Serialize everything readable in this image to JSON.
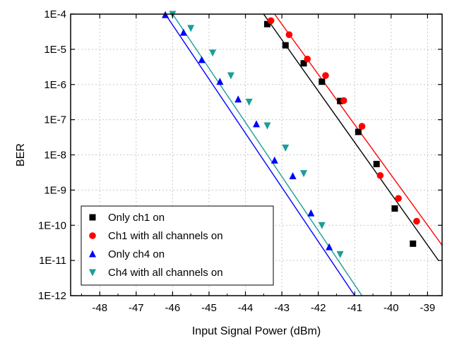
{
  "chart_data": {
    "type": "scatter",
    "title": "",
    "xlabel": "Input Signal Power (dBm)",
    "ylabel": "BER",
    "xlim": [
      -48.8,
      -38.6
    ],
    "ylim_exponent": [
      -12,
      -4
    ],
    "y_scale": "log",
    "grid": "dotted",
    "legend_position": "bottom-left",
    "x_ticks": [
      -48,
      -47,
      -46,
      -45,
      -44,
      -43,
      -42,
      -41,
      -40,
      -39
    ],
    "x_tick_labels": [
      "-48",
      "-47",
      "-46",
      "-45",
      "-44",
      "-43",
      "-42",
      "-41",
      "-40",
      "-39"
    ],
    "y_ticks": [
      1e-12,
      1e-11,
      1e-10,
      1e-09,
      1e-08,
      1e-07,
      1e-06,
      1e-05,
      0.0001
    ],
    "y_tick_labels": [
      "1E-12",
      "1E-11",
      "1E-10",
      "1E-9",
      "1E-8",
      "1E-7",
      "1E-6",
      "1E-5",
      "1E-4"
    ],
    "series": [
      {
        "name": "Only ch1 on",
        "marker": "square",
        "color": "#000000",
        "points": [
          [
            -43.4,
            5.2e-05
          ],
          [
            -42.9,
            1.3e-05
          ],
          [
            -42.4,
            4e-06
          ],
          [
            -41.9,
            1.2e-06
          ],
          [
            -41.4,
            3.4e-07
          ],
          [
            -40.9,
            4.5e-08
          ],
          [
            -40.4,
            5.5e-09
          ],
          [
            -39.9,
            3e-10
          ],
          [
            -39.4,
            3e-11
          ]
        ],
        "fit": [
          [
            -43.5,
            0.0001
          ],
          [
            -38.7,
            1e-11
          ]
        ]
      },
      {
        "name": "Ch1 with all channels on",
        "marker": "circle",
        "color": "#ff0000",
        "points": [
          [
            -43.3,
            6.5e-05
          ],
          [
            -42.8,
            2.6e-05
          ],
          [
            -42.3,
            5.3e-06
          ],
          [
            -41.8,
            1.8e-06
          ],
          [
            -41.3,
            3.5e-07
          ],
          [
            -40.8,
            6.5e-08
          ],
          [
            -40.3,
            2.6e-09
          ],
          [
            -39.8,
            5.8e-10
          ],
          [
            -39.3,
            1.3e-10
          ]
        ],
        "fit": [
          [
            -43.2,
            0.0001
          ],
          [
            -38.6,
            2.7e-11
          ]
        ]
      },
      {
        "name": "Only ch4 on",
        "marker": "triangle-up",
        "color": "#0000ff",
        "points": [
          [
            -46.2,
            9.5e-05
          ],
          [
            -45.7,
            3e-05
          ],
          [
            -45.2,
            5e-06
          ],
          [
            -44.7,
            1.2e-06
          ],
          [
            -44.2,
            3.8e-07
          ],
          [
            -43.7,
            7.5e-08
          ],
          [
            -43.2,
            7e-09
          ],
          [
            -42.7,
            2.5e-09
          ],
          [
            -42.2,
            2.2e-10
          ],
          [
            -41.7,
            2.4e-11
          ]
        ],
        "fit": [
          [
            -46.2,
            0.0001
          ],
          [
            -41.0,
            1e-12
          ]
        ]
      },
      {
        "name": "Ch4 with all channels on",
        "marker": "triangle-down",
        "color": "#1a9e96",
        "points": [
          [
            -46.0,
            0.0001
          ],
          [
            -45.5,
            4e-05
          ],
          [
            -44.9,
            8e-06
          ],
          [
            -44.4,
            1.8e-06
          ],
          [
            -43.9,
            3.2e-07
          ],
          [
            -43.4,
            6.8e-08
          ],
          [
            -42.9,
            1.6e-08
          ],
          [
            -42.4,
            3e-09
          ],
          [
            -41.9,
            1e-10
          ],
          [
            -41.4,
            1.5e-11
          ]
        ],
        "fit": [
          [
            -46.0,
            0.0001
          ],
          [
            -40.8,
            1e-12
          ]
        ]
      }
    ]
  }
}
